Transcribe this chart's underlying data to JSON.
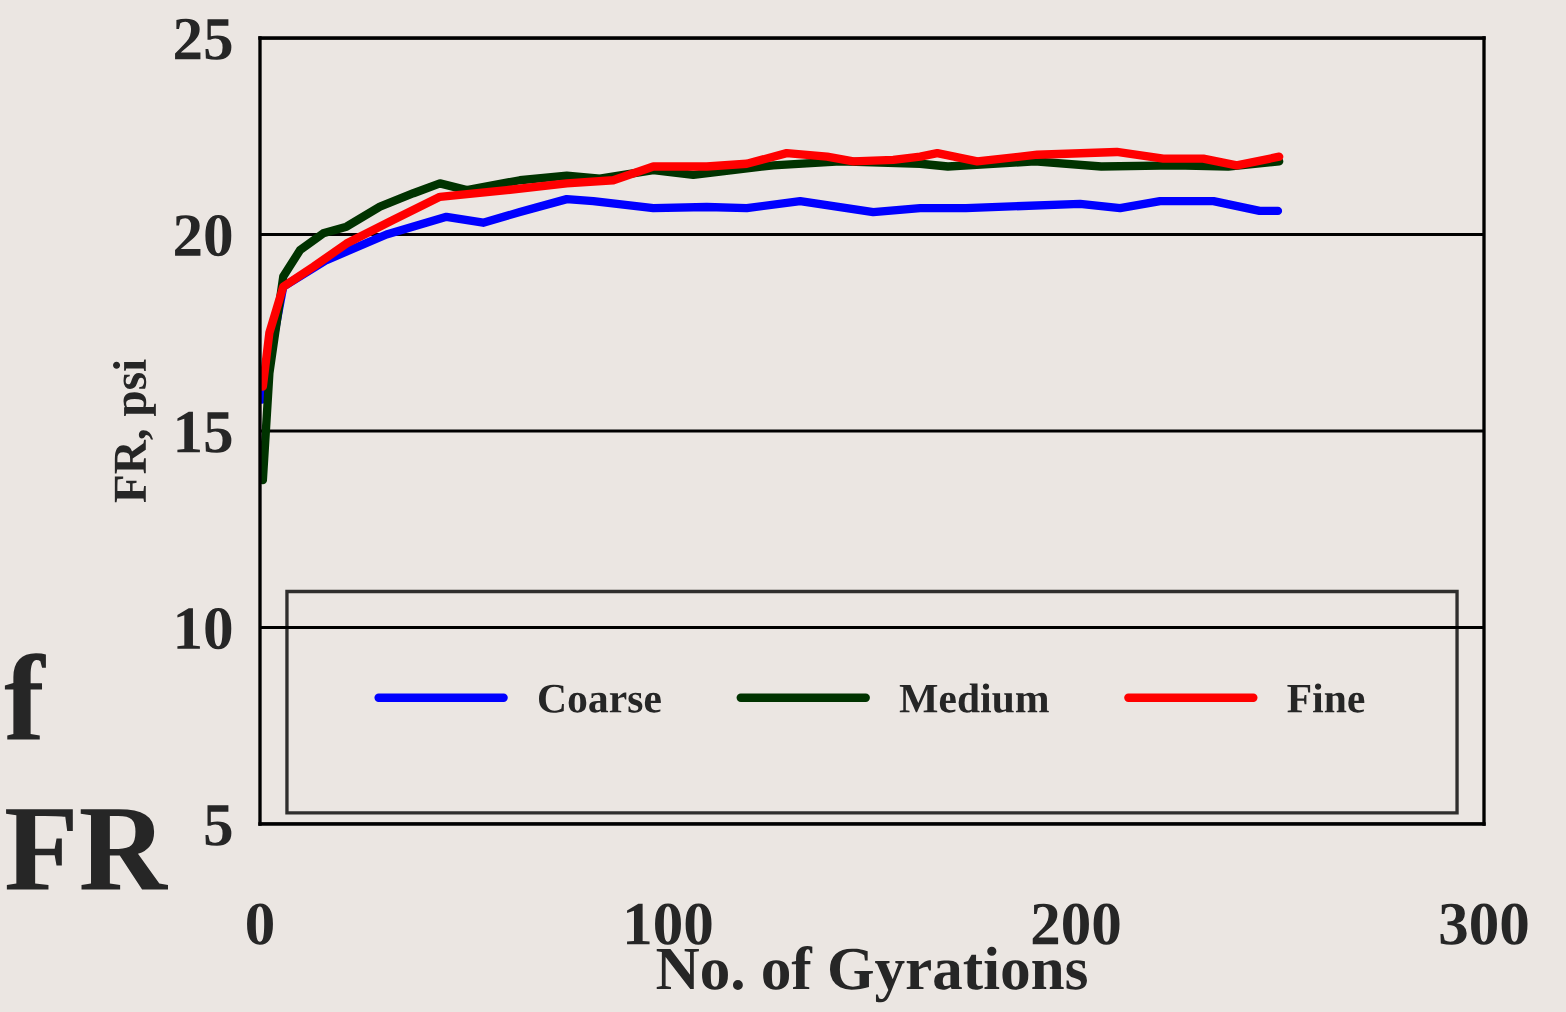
{
  "chart_data": {
    "type": "line",
    "xlabel": "No. of Gyrations",
    "ylabel": "FR, psi",
    "xlim": [
      0,
      300
    ],
    "xticks": [
      0,
      100,
      200,
      300
    ],
    "ylim": [
      5,
      25
    ],
    "yticks": [
      5,
      10,
      15,
      20,
      25
    ],
    "grid": "y",
    "legend": "bottom",
    "line_style": "solid",
    "marker": "none",
    "annotations": [
      "f",
      "FR"
    ],
    "series": [
      {
        "name": "Coarse",
        "color": "#0000ff",
        "x": [
          0.5,
          5.7,
          16.3,
          31,
          45.7,
          54.7,
          63.7,
          75.2,
          81.7,
          96.4,
          109.5,
          119.3,
          132.4,
          150.3,
          161.8,
          173,
          201,
          210.8,
          220.6,
          233.7,
          245,
          249.5
        ],
        "values": [
          15.8,
          18.67,
          19.35,
          20.0,
          20.45,
          20.3,
          20.57,
          20.9,
          20.85,
          20.67,
          20.7,
          20.67,
          20.85,
          20.57,
          20.67,
          20.67,
          20.78,
          20.67,
          20.85,
          20.85,
          20.6,
          20.6
        ]
      },
      {
        "name": "Medium",
        "color": "#003300",
        "x": [
          0.7,
          2.3,
          5.7,
          9.8,
          15.5,
          21.2,
          29.4,
          37.6,
          44.1,
          50.7,
          63.7,
          75.2,
          83.3,
          96.4,
          106.2,
          125.8,
          142.2,
          161.8,
          168.6,
          189.9,
          206.2,
          224.2,
          237.3,
          249.8
        ],
        "values": [
          13.75,
          16.47,
          18.93,
          19.6,
          20.03,
          20.2,
          20.71,
          21.05,
          21.3,
          21.13,
          21.38,
          21.5,
          21.42,
          21.64,
          21.52,
          21.76,
          21.86,
          21.8,
          21.73,
          21.86,
          21.73,
          21.76,
          21.73,
          21.86
        ]
      },
      {
        "name": "Fine",
        "color": "#ff0000",
        "x": [
          0.7,
          2.3,
          5.7,
          13.1,
          21.2,
          32.6,
          44.1,
          60.5,
          75.2,
          86.6,
          96.4,
          109.5,
          119.3,
          129.1,
          139,
          145.4,
          155.2,
          161.8,
          166,
          175.8,
          190.5,
          210,
          221.4,
          231.2,
          239.4,
          249.8
        ],
        "values": [
          16.13,
          17.5,
          18.67,
          19.18,
          19.77,
          20.37,
          20.96,
          21.13,
          21.3,
          21.38,
          21.73,
          21.73,
          21.8,
          22.07,
          21.98,
          21.86,
          21.9,
          21.98,
          22.07,
          21.86,
          22.03,
          22.1,
          21.93,
          21.93,
          21.76,
          21.98
        ]
      }
    ]
  }
}
